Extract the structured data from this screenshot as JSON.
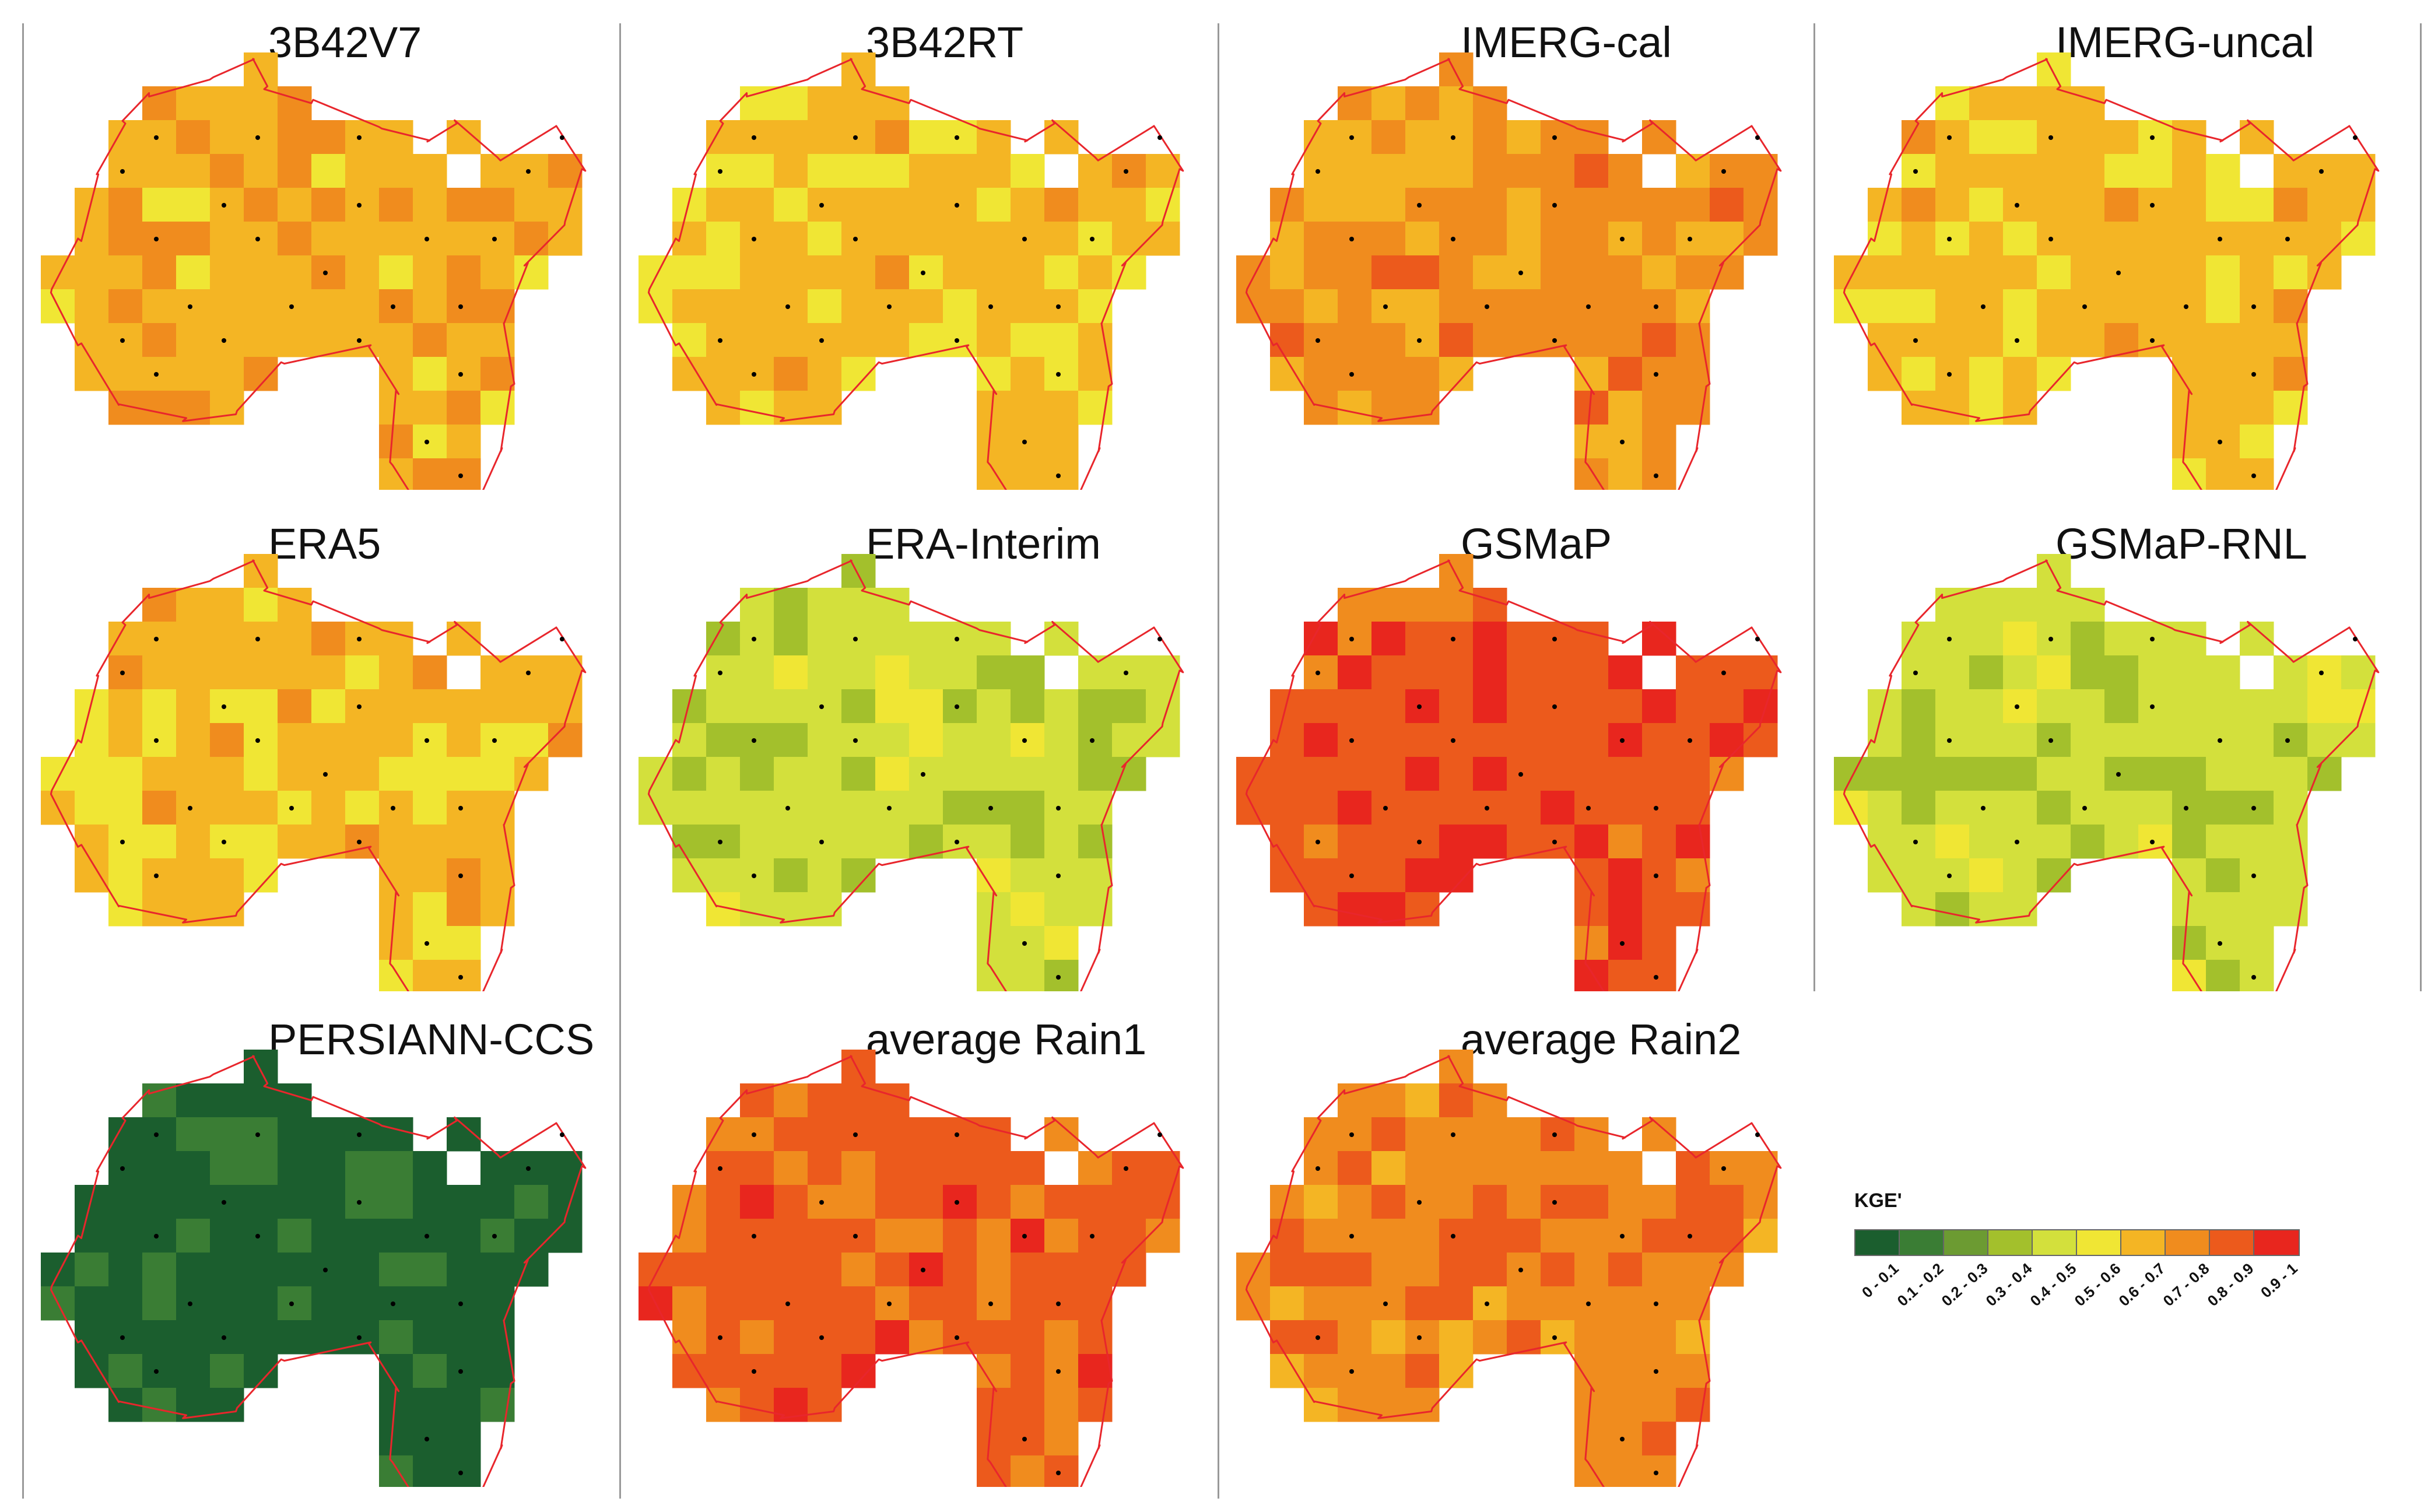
{
  "figure": {
    "panels": [
      {
        "title": "3B42V7",
        "scheme": "lo",
        "base": 6,
        "variant": 7,
        "seed": 11
      },
      {
        "title": "3B42RT",
        "scheme": "lo",
        "base": 6,
        "variant": 5,
        "seed": 23
      },
      {
        "title": "IMERG-cal",
        "scheme": "hi",
        "base": 7,
        "variant": 6,
        "seed": 37
      },
      {
        "title": "IMERG-uncal",
        "scheme": "lo",
        "base": 6,
        "variant": 5,
        "seed": 41
      },
      {
        "title": "ERA5",
        "scheme": "lo",
        "base": 6,
        "variant": 5,
        "seed": 53
      },
      {
        "title": "ERA-Interim",
        "scheme": "mid",
        "base": 4,
        "variant": 3,
        "seed": 67
      },
      {
        "title": "GSMaP",
        "scheme": "top",
        "base": 8,
        "variant": 9,
        "seed": 71
      },
      {
        "title": "GSMaP-RNL",
        "scheme": "mid",
        "base": 4,
        "variant": 3,
        "seed": 83
      },
      {
        "title": "PERSIANN-CCS",
        "scheme": "low",
        "base": 0,
        "variant": 1,
        "seed": 97
      },
      {
        "title": "average Rain1",
        "scheme": "top",
        "base": 8,
        "variant": 7,
        "seed": 101
      },
      {
        "title": "average Rain2",
        "scheme": "hi",
        "base": 7,
        "variant": 8,
        "seed": 113
      }
    ]
  },
  "legend": {
    "title": "KGE'",
    "classes": [
      {
        "label": "0 - 0.1",
        "color": "#1b5e2e"
      },
      {
        "label": "0.1 - 0.2",
        "color": "#3a7d34"
      },
      {
        "label": "0.2 - 0.3",
        "color": "#6c9b32"
      },
      {
        "label": "0.3 - 0.4",
        "color": "#a3c02c"
      },
      {
        "label": "0.4 - 0.5",
        "color": "#d3e03c"
      },
      {
        "label": "0.5 - 0.6",
        "color": "#f0e634"
      },
      {
        "label": "0.6 - 0.7",
        "color": "#f4b524"
      },
      {
        "label": "0.7 - 0.8",
        "color": "#f08c1e"
      },
      {
        "label": "0.8 - 0.9",
        "color": "#ec5a1c"
      },
      {
        "label": "0.9 - 1",
        "color": "#e8261e"
      }
    ]
  },
  "colors": {
    "outline": "#e8262c",
    "divider": "#999999"
  }
}
